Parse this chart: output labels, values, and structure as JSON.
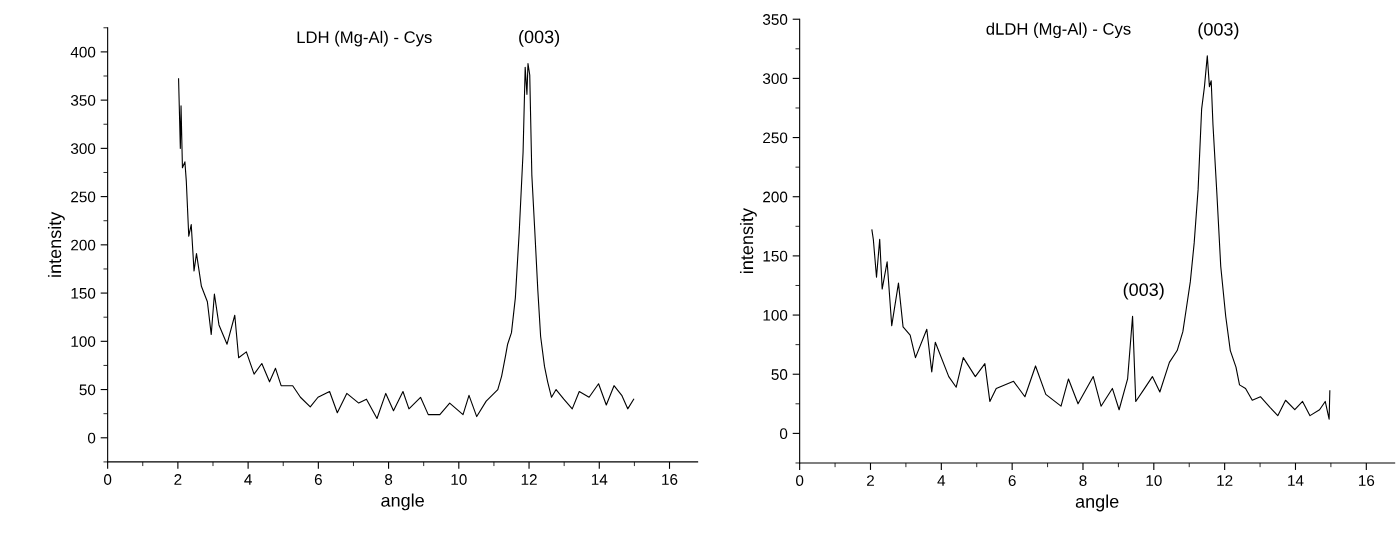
{
  "chart_data": [
    {
      "type": "line",
      "title": "LDH (Mg-Al) - Cys",
      "xlabel": "angle",
      "ylabel": "intensity",
      "color": "#000000",
      "marker": "none",
      "line_style": "solid",
      "grid": false,
      "legend": false,
      "x": [
        2.02,
        2.07,
        2.09,
        2.13,
        2.2,
        2.24,
        2.31,
        2.38,
        2.46,
        2.53,
        2.67,
        2.84,
        2.95,
        3.04,
        3.17,
        3.4,
        3.62,
        3.73,
        3.95,
        4.17,
        4.39,
        4.61,
        4.78,
        4.94,
        5.27,
        5.49,
        5.77,
        5.99,
        6.32,
        6.54,
        6.81,
        7.15,
        7.37,
        7.67,
        7.92,
        8.14,
        8.41,
        8.58,
        8.91,
        9.13,
        9.46,
        9.74,
        10.12,
        10.29,
        10.51,
        10.78,
        11.11,
        11.22,
        11.33,
        11.39,
        11.5,
        11.61,
        11.72,
        11.83,
        11.89,
        11.94,
        11.97,
        12.02,
        12.08,
        12.16,
        12.25,
        12.33,
        12.44,
        12.53,
        12.64,
        12.77,
        12.99,
        13.23,
        13.43,
        13.71,
        13.98,
        14.2,
        14.42,
        14.64,
        14.81,
        14.98
      ],
      "values": [
        372,
        300,
        344,
        280,
        286,
        266,
        209,
        221,
        173,
        191,
        157,
        141,
        107,
        149,
        117,
        97,
        127,
        83,
        89,
        66,
        77,
        58,
        72,
        54,
        54,
        42,
        32,
        42,
        48,
        26,
        46,
        36,
        40,
        20,
        46,
        28,
        48,
        30,
        42,
        24,
        24,
        36,
        24,
        44,
        22,
        38,
        50,
        64,
        85,
        97,
        109,
        145,
        213,
        296,
        384,
        356,
        388,
        376,
        272,
        217,
        153,
        105,
        74,
        58,
        42,
        50,
        40,
        30,
        48,
        42,
        56,
        34,
        54,
        44,
        30,
        40
      ],
      "xlim": [
        0,
        16.8
      ],
      "ylim": [
        -25,
        425
      ],
      "xticks": [
        0,
        {
          "value": 1,
          "label": null
        },
        2,
        {
          "value": 3,
          "label": null
        },
        4,
        {
          "value": 5,
          "label": null
        },
        6,
        {
          "value": 7,
          "label": null
        },
        8,
        {
          "value": 9,
          "label": null
        },
        10,
        {
          "value": 11,
          "label": null
        },
        12,
        {
          "value": 13,
          "label": null
        },
        14,
        {
          "value": 15,
          "label": null
        },
        16
      ],
      "yticks": [
        {
          "value": -25,
          "label": null
        },
        0,
        {
          "value": 25,
          "label": null
        },
        50,
        {
          "value": 75,
          "label": null
        },
        100,
        {
          "value": 125,
          "label": null
        },
        150,
        {
          "value": 175,
          "label": null
        },
        200,
        {
          "value": 225,
          "label": null
        },
        250,
        {
          "value": 275,
          "label": null
        },
        300,
        {
          "value": 325,
          "label": null
        },
        350,
        {
          "value": 375,
          "label": null
        },
        400,
        {
          "value": 425,
          "label": null
        }
      ],
      "annotations": [
        {
          "text": "(003)",
          "x": 11.97,
          "y": 388
        }
      ]
    },
    {
      "type": "line",
      "title": "dLDH (Mg-Al) - Cys",
      "xlabel": "angle",
      "ylabel": "intensity",
      "color": "#000000",
      "marker": "none",
      "line_style": "solid",
      "grid": false,
      "legend": false,
      "x": [
        2.04,
        2.08,
        2.17,
        2.26,
        2.33,
        2.47,
        2.6,
        2.79,
        2.92,
        3.12,
        3.27,
        3.59,
        3.73,
        3.83,
        4.21,
        4.42,
        4.62,
        4.96,
        5.23,
        5.37,
        5.55,
        6.04,
        6.36,
        6.66,
        6.95,
        7.38,
        7.59,
        7.86,
        8.29,
        8.51,
        8.83,
        9.02,
        9.26,
        9.4,
        9.49,
        9.74,
        9.96,
        10.17,
        10.44,
        10.66,
        10.82,
        10.92,
        11.03,
        11.14,
        11.25,
        11.35,
        11.43,
        11.51,
        11.57,
        11.62,
        11.67,
        11.78,
        11.89,
        12.03,
        12.16,
        12.32,
        12.42,
        12.59,
        12.78,
        13.01,
        13.28,
        13.5,
        13.72,
        13.98,
        14.2,
        14.41,
        14.68,
        14.84,
        14.95,
        14.97
      ],
      "values": [
        172,
        164,
        132,
        164,
        122,
        145,
        91,
        127,
        90,
        83,
        64,
        88,
        52,
        77,
        48,
        39,
        64,
        48,
        59,
        27,
        38,
        44,
        31,
        57,
        33,
        23,
        46,
        25,
        48,
        23,
        38,
        20,
        46,
        99,
        27,
        38,
        48,
        35,
        60,
        70,
        86,
        106,
        128,
        161,
        206,
        274,
        293,
        319,
        293,
        298,
        261,
        203,
        141,
        99,
        70,
        56,
        41,
        38,
        28,
        31,
        22,
        15,
        28,
        20,
        27,
        15,
        20,
        27,
        12,
        36
      ],
      "xlim": [
        0,
        16.8
      ],
      "ylim": [
        -25,
        350
      ],
      "xticks": [
        0,
        {
          "value": 1,
          "label": null
        },
        2,
        {
          "value": 3,
          "label": null
        },
        4,
        {
          "value": 5,
          "label": null
        },
        6,
        {
          "value": 7,
          "label": null
        },
        8,
        {
          "value": 9,
          "label": null
        },
        10,
        {
          "value": 11,
          "label": null
        },
        12,
        {
          "value": 13,
          "label": null
        },
        14,
        {
          "value": 15,
          "label": null
        },
        16
      ],
      "yticks": [
        {
          "value": -25,
          "label": null
        },
        0,
        {
          "value": 25,
          "label": null
        },
        50,
        {
          "value": 75,
          "label": null
        },
        100,
        {
          "value": 125,
          "label": null
        },
        150,
        {
          "value": 175,
          "label": null
        },
        200,
        {
          "value": 225,
          "label": null
        },
        250,
        {
          "value": 275,
          "label": null
        },
        300,
        {
          "value": 325,
          "label": null
        },
        350
      ],
      "annotations": [
        {
          "text": "(003)",
          "x": 11.51,
          "y": 319
        },
        {
          "text": "(003)",
          "x": 9.4,
          "y": 99
        }
      ]
    }
  ]
}
